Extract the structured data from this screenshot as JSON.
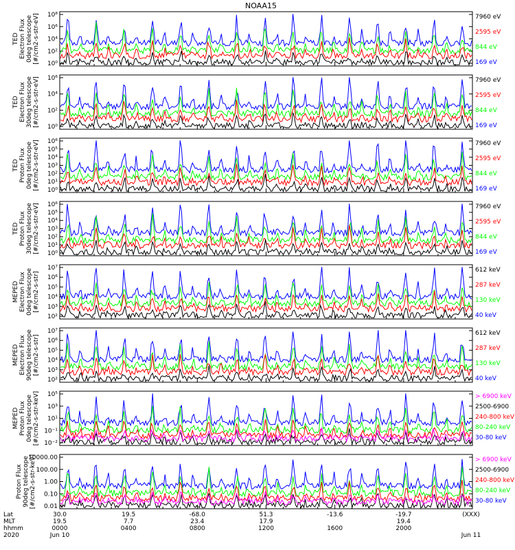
{
  "title": "NOAA15",
  "colors": {
    "black": "#000000",
    "red": "#ff0000",
    "green": "#00ff00",
    "blue": "#0000ff",
    "magenta": "#ff00ff"
  },
  "panels": [
    {
      "label": [
        "TED",
        "Electron Flux",
        "0deg telescope",
        "[#/cm2-s-str-eV]"
      ],
      "ticks": [
        "10⁸",
        "10⁶",
        "10⁴",
        "10²",
        "10⁰"
      ],
      "legend": [
        {
          "text": "7960 eV",
          "color": "black"
        },
        {
          "text": "2595 eV",
          "color": "red"
        },
        {
          "text": "844 eV",
          "color": "green"
        },
        {
          "text": "169 eV",
          "color": "blue"
        }
      ]
    },
    {
      "label": [
        "TED",
        "Electron Flux",
        "30deg telescope",
        "[#/cm2-s-str-eV]"
      ],
      "ticks": [
        "10⁶",
        "10⁴",
        "10²",
        "10⁰"
      ],
      "legend": [
        {
          "text": "7960 eV",
          "color": "black"
        },
        {
          "text": "2595 eV",
          "color": "red"
        },
        {
          "text": "844 eV",
          "color": "green"
        },
        {
          "text": "169 eV",
          "color": "blue"
        }
      ]
    },
    {
      "label": [
        "TED",
        "Proton Flux",
        "0deg telescope",
        "[#/cm2-s-str-eV]"
      ],
      "ticks": [
        "10⁶",
        "10⁵",
        "10⁴",
        "10³",
        "10²",
        "10¹",
        "10⁰"
      ],
      "legend": [
        {
          "text": "7960 eV",
          "color": "black"
        },
        {
          "text": "2595 eV",
          "color": "red"
        },
        {
          "text": "844 eV",
          "color": "green"
        },
        {
          "text": "169 eV",
          "color": "blue"
        }
      ]
    },
    {
      "label": [
        "TED",
        "Proton Flux",
        "30deg telescope",
        "[#/cm2-s-str-eV]"
      ],
      "ticks": [
        "10⁶",
        "10⁵",
        "10⁴",
        "10³",
        "10²",
        "10¹",
        "10⁰"
      ],
      "legend": [
        {
          "text": "7960 eV",
          "color": "black"
        },
        {
          "text": "2595 eV",
          "color": "red"
        },
        {
          "text": "844 eV",
          "color": "green"
        },
        {
          "text": "169 eV",
          "color": "blue"
        }
      ]
    },
    {
      "label": [
        "MEPED",
        "Electron Flux",
        "0deg telescope",
        "[#/cm2-s-str]"
      ],
      "ticks": [
        "10⁷",
        "10⁶",
        "10⁵",
        "10⁴",
        "10³",
        "10²"
      ],
      "legend": [
        {
          "text": "612 keV",
          "color": "black"
        },
        {
          "text": "287 keV",
          "color": "red"
        },
        {
          "text": "130 keV",
          "color": "green"
        },
        {
          "text": "40 keV",
          "color": "blue"
        }
      ]
    },
    {
      "label": [
        "MEPED",
        "Electron Flux",
        "90deg telescope",
        "[#/cm2-s-str]"
      ],
      "ticks": [
        "10⁷",
        "10⁶",
        "10⁵",
        "10⁴",
        "10³",
        "10²"
      ],
      "legend": [
        {
          "text": "612 keV",
          "color": "black"
        },
        {
          "text": "287 keV",
          "color": "red"
        },
        {
          "text": "130 keV",
          "color": "green"
        },
        {
          "text": "40 keV",
          "color": "blue"
        }
      ]
    },
    {
      "label": [
        "MEPED",
        "Proton Flux",
        "0deg telescope",
        "[#/cm2-s-str-keV]"
      ],
      "ticks": [
        "10⁵",
        "10³",
        "10¹",
        "10⁻¹",
        "10⁻²"
      ],
      "legend": [
        {
          "text": "> 6900 keV",
          "color": "magenta"
        },
        {
          "text": "2500-6900",
          "color": "black"
        },
        {
          "text": "240-800 keV",
          "color": "red"
        },
        {
          "text": "80-240 keV",
          "color": "green"
        },
        {
          "text": "30-80 keV",
          "color": "blue"
        }
      ]
    },
    {
      "label": [
        "Proton Flux",
        "90deg telescope",
        "[#/cm2-s-str-keV]"
      ],
      "ticks": [
        "10000.00",
        "100.00",
        "1.00",
        "0.10",
        "0.01"
      ],
      "legend": [
        {
          "text": "> 6900 keV",
          "color": "magenta"
        },
        {
          "text": "2500-6900",
          "color": "black"
        },
        {
          "text": "240-800 keV",
          "color": "red"
        },
        {
          "text": "80-240 keV",
          "color": "green"
        },
        {
          "text": "30-80 keV",
          "color": "blue"
        }
      ]
    }
  ],
  "axis": {
    "row_labels": [
      "Lat",
      "MLT",
      "hhmm",
      "2020"
    ],
    "columns": [
      {
        "values": [
          "30.0",
          "19.5",
          "0000",
          "Jun 10"
        ]
      },
      {
        "values": [
          "19.5",
          "7.7",
          "0400",
          ""
        ]
      },
      {
        "values": [
          "-68.0",
          "23.4",
          "0800",
          ""
        ]
      },
      {
        "values": [
          "51.3",
          "17.9",
          "1200",
          ""
        ]
      },
      {
        "values": [
          "-13.6",
          "",
          "1600",
          ""
        ]
      },
      {
        "values": [
          "-19.7",
          "19.4",
          "2000",
          ""
        ]
      },
      {
        "values": [
          "(XXX)",
          "",
          "",
          "Jun 11"
        ]
      }
    ]
  },
  "chart_data": {
    "type": "line",
    "title": "NOAA15",
    "x_range": [
      "0000 Jun 10",
      "0000 Jun 11"
    ],
    "x_ticks": [
      "0000",
      "0400",
      "0800",
      "1200",
      "1600",
      "2000"
    ],
    "y_scale": "log",
    "panels": [
      {
        "name": "TED Electron Flux 0deg telescope",
        "series": [
          "7960 eV",
          "2595 eV",
          "844 eV",
          "169 eV"
        ]
      },
      {
        "name": "TED Electron Flux 30deg telescope",
        "series": [
          "7960 eV",
          "2595 eV",
          "844 eV",
          "169 eV"
        ]
      },
      {
        "name": "TED Proton Flux 0deg telescope",
        "series": [
          "7960 eV",
          "2595 eV",
          "844 eV",
          "169 eV"
        ]
      },
      {
        "name": "TED Proton Flux 30deg telescope",
        "series": [
          "7960 eV",
          "2595 eV",
          "844 eV",
          "169 eV"
        ]
      },
      {
        "name": "MEPED Electron Flux 0deg telescope",
        "series": [
          "612 keV",
          "287 keV",
          "130 keV",
          "40 keV"
        ]
      },
      {
        "name": "MEPED Electron Flux 90deg telescope",
        "series": [
          "612 keV",
          "287 keV",
          "130 keV",
          "40 keV"
        ]
      },
      {
        "name": "MEPED Proton Flux 0deg telescope",
        "series": [
          "> 6900 keV",
          "2500-6900",
          "240-800 keV",
          "80-240 keV",
          "30-80 keV"
        ]
      },
      {
        "name": "Proton Flux 90deg telescope",
        "series": [
          "> 6900 keV",
          "2500-6900",
          "240-800 keV",
          "80-240 keV",
          "30-80 keV"
        ]
      }
    ]
  }
}
